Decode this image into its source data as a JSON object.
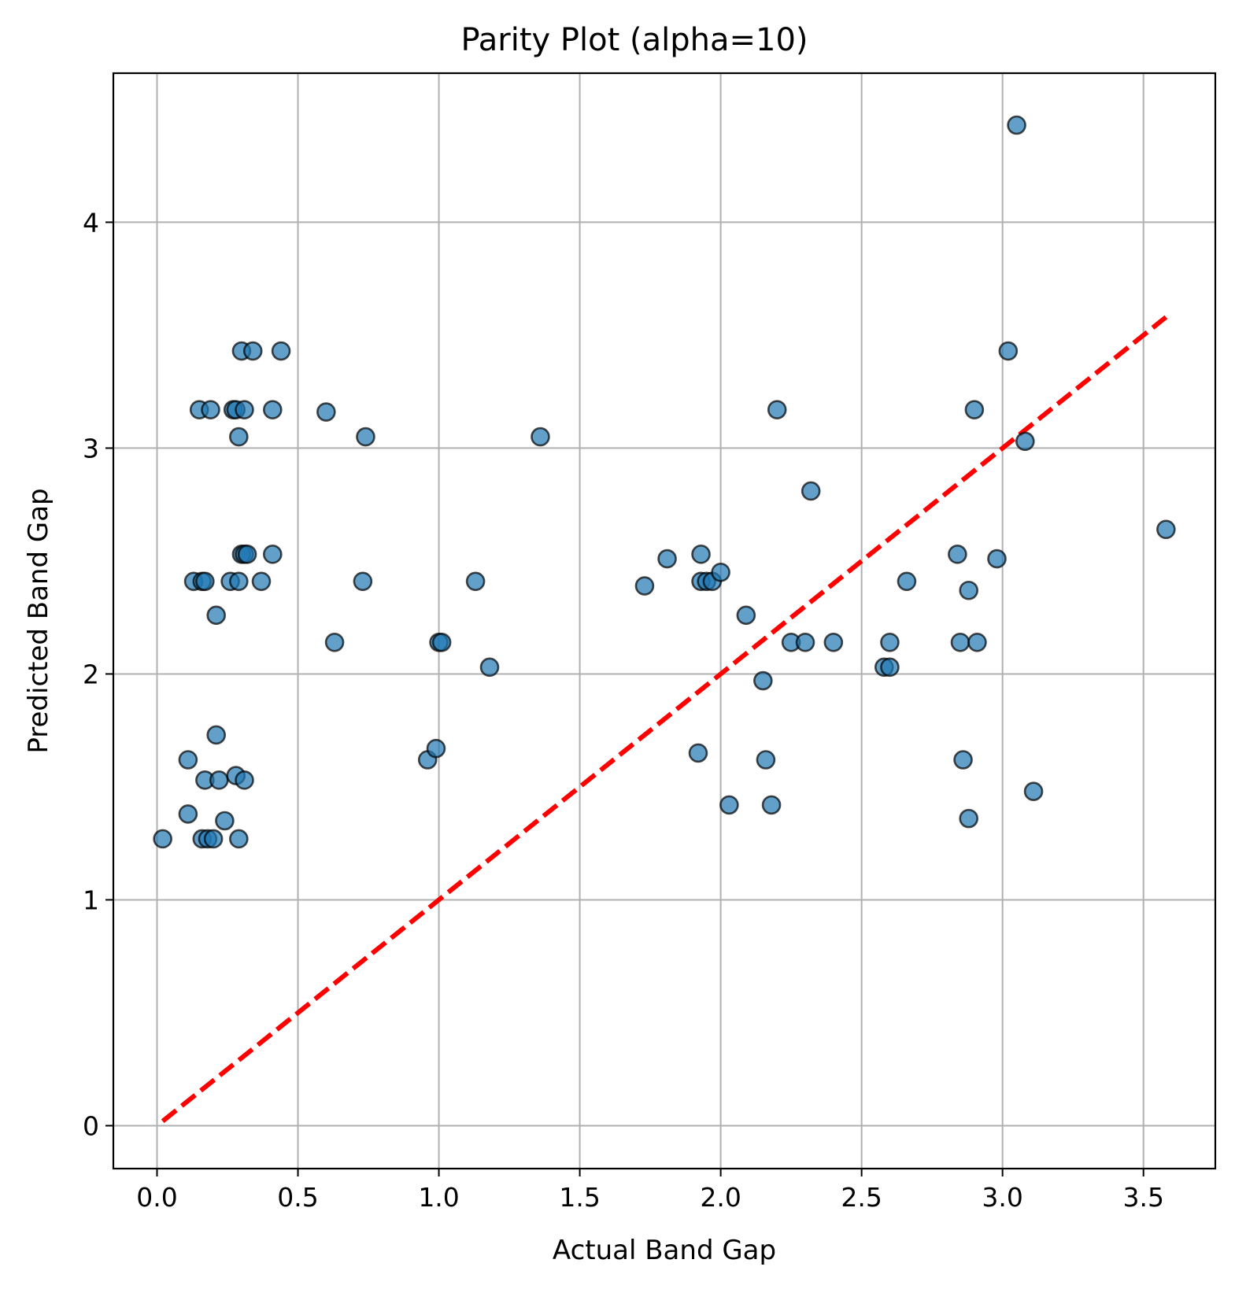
{
  "chart_data": {
    "type": "scatter",
    "title": "Parity Plot (alpha=10)",
    "xlabel": "Actual Band Gap",
    "ylabel": "Predicted Band Gap",
    "xlim": [
      -0.155,
      3.755
    ],
    "ylim": [
      -0.19,
      4.66
    ],
    "xticks": [
      0.0,
      0.5,
      1.0,
      1.5,
      2.0,
      2.5,
      3.0,
      3.5
    ],
    "xtick_labels": [
      "0.0",
      "0.5",
      "1.0",
      "1.5",
      "2.0",
      "2.5",
      "3.0",
      "3.5"
    ],
    "yticks": [
      0,
      1,
      2,
      3,
      4
    ],
    "ytick_labels": [
      "0",
      "1",
      "2",
      "3",
      "4"
    ],
    "grid": true,
    "series": [
      {
        "marker_color": "#1f77b4",
        "x": [
          0.02,
          0.11,
          0.11,
          0.13,
          0.15,
          0.16,
          0.16,
          0.17,
          0.17,
          0.18,
          0.19,
          0.2,
          0.21,
          0.21,
          0.22,
          0.24,
          0.26,
          0.27,
          0.28,
          0.28,
          0.29,
          0.29,
          0.29,
          0.3,
          0.3,
          0.31,
          0.31,
          0.31,
          0.32,
          0.34,
          0.37,
          0.41,
          0.41,
          0.44,
          0.6,
          0.63,
          0.73,
          0.74,
          0.96,
          0.99,
          1.0,
          1.01,
          1.13,
          1.18,
          1.36,
          1.73,
          1.81,
          1.92,
          1.93,
          1.93,
          1.95,
          1.97,
          2.0,
          2.03,
          2.09,
          2.15,
          2.16,
          2.18,
          2.2,
          2.25,
          2.3,
          2.32,
          2.4,
          2.58,
          2.6,
          2.6,
          2.66,
          2.84,
          2.85,
          2.86,
          2.88,
          2.88,
          2.9,
          2.91,
          2.98,
          3.02,
          3.05,
          3.08,
          3.11,
          3.58
        ],
        "y": [
          1.27,
          1.62,
          1.38,
          2.41,
          3.17,
          2.41,
          1.27,
          1.53,
          2.41,
          1.27,
          3.17,
          1.27,
          2.26,
          1.73,
          1.53,
          1.35,
          2.41,
          3.17,
          3.17,
          1.55,
          3.05,
          2.41,
          1.27,
          3.43,
          2.53,
          3.17,
          2.53,
          1.53,
          2.53,
          3.43,
          2.41,
          3.17,
          2.53,
          3.43,
          3.16,
          2.14,
          2.41,
          3.05,
          1.62,
          1.67,
          2.14,
          2.14,
          2.41,
          2.03,
          3.05,
          2.39,
          2.51,
          1.65,
          2.53,
          2.41,
          2.41,
          2.41,
          2.45,
          1.42,
          2.26,
          1.97,
          1.62,
          1.42,
          3.17,
          2.14,
          2.14,
          2.81,
          2.14,
          2.03,
          2.03,
          2.14,
          2.41,
          2.53,
          2.14,
          1.62,
          2.37,
          1.36,
          3.17,
          2.14,
          2.51,
          3.43,
          4.43,
          3.03,
          1.48,
          2.64
        ]
      }
    ],
    "reference_line": {
      "style": "dashed",
      "color": "#ff0000",
      "x": [
        0.02,
        3.58
      ],
      "y": [
        0.02,
        3.58
      ]
    }
  }
}
